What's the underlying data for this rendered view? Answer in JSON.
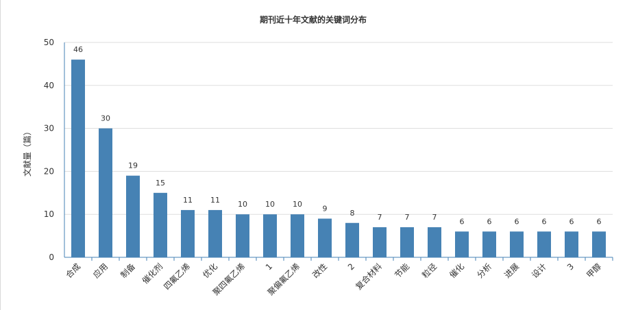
{
  "chart_data": {
    "type": "bar",
    "title": "期刊近十年文献的关键词分布",
    "xlabel": "",
    "ylabel": "文献量（篇）",
    "ylim": [
      0,
      50
    ],
    "yticks": [
      0,
      10,
      20,
      30,
      40,
      50
    ],
    "grid": true,
    "bar_color": "#4682b4",
    "categories": [
      "合成",
      "应用",
      "制备",
      "催化剂",
      "四氟乙烯",
      "优化",
      "聚四氟乙烯",
      "1",
      "聚偏氟乙烯",
      "改性",
      "2",
      "复合材料",
      "节能",
      "粒径",
      "催化",
      "分析",
      "进展",
      "设计",
      "3",
      "甲醇"
    ],
    "values": [
      46,
      30,
      19,
      15,
      11,
      11,
      10,
      10,
      10,
      9,
      8,
      7,
      7,
      7,
      6,
      6,
      6,
      6,
      6,
      6
    ]
  }
}
